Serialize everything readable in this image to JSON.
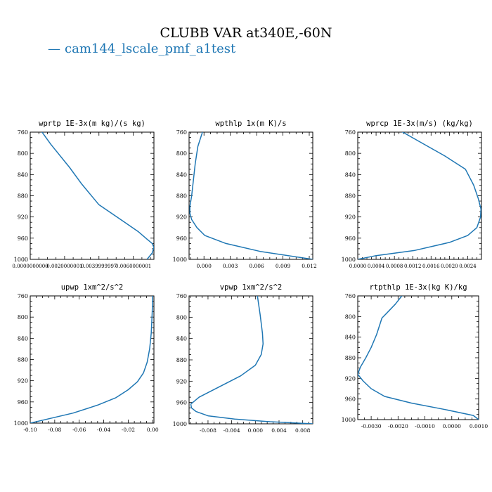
{
  "page": {
    "title": "CLUBB VAR at340E,-60N"
  },
  "legend": {
    "entries": [
      {
        "label": "cam144_lscale_pmf_a1test",
        "color": "#1f77b4"
      }
    ]
  },
  "chart_data": [
    {
      "type": "line",
      "title": "wprtp   1E-3x(m kg)/(s kg)",
      "xlim": [
        0.0,
        0.0072
      ],
      "ylim": [
        760,
        1000
      ],
      "x_ticks": [
        0.0,
        0.0020000001,
        0.0039999997,
        0.0060000001
      ],
      "x_tick_labels": [
        "0.0000000000",
        "0.0020000001",
        "0.0039999997",
        "0.0060000001"
      ],
      "y_ticks": [
        760,
        800,
        840,
        880,
        920,
        960,
        1000
      ],
      "y_tick_labels": [
        "760",
        "800",
        "840",
        "880",
        "920",
        "960",
        "1000"
      ],
      "series": [
        {
          "name": "cam144_lscale_pmf_a1test",
          "x": [
            0.0006,
            0.0012,
            0.0023,
            0.003,
            0.004,
            0.0055,
            0.0063,
            0.0068,
            0.0071,
            0.0072,
            0.0071,
            0.0068
          ],
          "y": [
            756,
            783,
            827,
            858,
            897,
            930,
            948,
            962,
            970,
            978,
            988,
            1000
          ]
        }
      ]
    },
    {
      "type": "line",
      "title": "wpthlp   1x(m K)/s",
      "xlim": [
        -0.0017,
        0.0124
      ],
      "ylim": [
        760,
        1000
      ],
      "x_ticks": [
        0.0,
        0.003,
        0.006,
        0.009,
        0.012
      ],
      "x_tick_labels": [
        "0.000",
        "0.003",
        "0.006",
        "0.009",
        "0.012"
      ],
      "y_ticks": [
        760,
        800,
        840,
        880,
        920,
        960,
        1000
      ],
      "y_tick_labels": [
        "760",
        "800",
        "840",
        "880",
        "920",
        "960",
        "1000"
      ],
      "series": [
        {
          "name": "cam144_lscale_pmf_a1test",
          "x": [
            -0.0001,
            -0.0007,
            -0.001,
            -0.0012,
            -0.0014,
            -0.0016,
            -0.0016,
            -0.0014,
            -0.0008,
            0.0001,
            0.0025,
            0.0064,
            0.0124
          ],
          "y": [
            756,
            787,
            820,
            850,
            880,
            900,
            913,
            925,
            940,
            955,
            970,
            985,
            1000
          ]
        }
      ]
    },
    {
      "type": "line",
      "title": "wprcp   1E-3x(m/s) (kg/kg)",
      "xlim": [
        0.0,
        0.0027
      ],
      "ylim": [
        760,
        1000
      ],
      "x_ticks": [
        0.0,
        0.0004,
        0.0008,
        0.0012,
        0.0016,
        0.002,
        0.0024
      ],
      "x_tick_labels": [
        "0.0000",
        "0.0004",
        "0.0008",
        "0.0012",
        "0.0016",
        "0.0020",
        "0.0024"
      ],
      "y_ticks": [
        760,
        800,
        840,
        880,
        920,
        960,
        1000
      ],
      "y_tick_labels": [
        "760",
        "800",
        "840",
        "880",
        "920",
        "960",
        "1000"
      ],
      "series": [
        {
          "name": "cam144_lscale_pmf_a1test",
          "x": [
            0.0009,
            0.00135,
            0.0019,
            0.00235,
            0.00253,
            0.00263,
            0.00269,
            0.00268,
            0.0026,
            0.0024,
            0.002,
            0.00125,
            0.0004,
            0.0
          ],
          "y": [
            756,
            778,
            805,
            830,
            860,
            885,
            905,
            920,
            940,
            955,
            968,
            983,
            993,
            1000
          ]
        }
      ]
    },
    {
      "type": "line",
      "title": "upwp   1xm^2/s^2",
      "xlim": [
        -0.1,
        0.001
      ],
      "ylim": [
        760,
        1000
      ],
      "x_ticks": [
        -0.1,
        -0.08,
        -0.06,
        -0.04,
        -0.02,
        0.0
      ],
      "x_tick_labels": [
        "-0.10",
        "-0.08",
        "-0.06",
        "-0.04",
        "-0.02",
        "0.00"
      ],
      "y_ticks": [
        760,
        800,
        840,
        880,
        920,
        960,
        1000
      ],
      "y_tick_labels": [
        "760",
        "800",
        "840",
        "880",
        "920",
        "960",
        "1000"
      ],
      "series": [
        {
          "name": "cam144_lscale_pmf_a1test",
          "x": [
            0.0,
            -0.0004,
            -0.0012,
            -0.0025,
            -0.0045,
            -0.0075,
            -0.0125,
            -0.02,
            -0.03,
            -0.045,
            -0.065,
            -0.1
          ],
          "y": [
            756,
            790,
            830,
            860,
            885,
            905,
            922,
            937,
            952,
            966,
            981,
            1000
          ]
        }
      ]
    },
    {
      "type": "line",
      "title": "vpwp   1xm^2/s^2",
      "xlim": [
        -0.0112,
        0.0097
      ],
      "ylim": [
        760,
        1000
      ],
      "x_ticks": [
        -0.008,
        -0.004,
        0.0,
        0.004,
        0.008
      ],
      "x_tick_labels": [
        "-0.008",
        "-0.004",
        "0.000",
        "0.004",
        "0.008"
      ],
      "y_ticks": [
        760,
        800,
        840,
        880,
        920,
        960,
        1000
      ],
      "y_tick_labels": [
        "760",
        "800",
        "840",
        "880",
        "920",
        "960",
        "1000"
      ],
      "series": [
        {
          "name": "cam144_lscale_pmf_a1test",
          "x": [
            0.0003,
            0.0008,
            0.0012,
            0.0013,
            0.001,
            0.0,
            -0.0025,
            -0.006,
            -0.0095,
            -0.0109,
            -0.0108,
            -0.01,
            -0.008,
            -0.0035,
            0.0025,
            0.0097
          ],
          "y": [
            756,
            795,
            830,
            850,
            870,
            890,
            910,
            930,
            950,
            963,
            970,
            977,
            985,
            991,
            996,
            1000
          ]
        }
      ]
    },
    {
      "type": "line",
      "title": "rtpthlp   1E-3x(kg K)/kg",
      "xlim": [
        -0.0035,
        0.001
      ],
      "ylim": [
        760,
        1000
      ],
      "x_ticks": [
        -0.003,
        -0.002,
        -0.001,
        0.0,
        0.001
      ],
      "x_tick_labels": [
        "-0.0030",
        "-0.0020",
        "-0.0010",
        "0.0000",
        "0.0010"
      ],
      "y_ticks": [
        760,
        800,
        840,
        880,
        920,
        960,
        1000
      ],
      "y_tick_labels": [
        "760",
        "800",
        "840",
        "880",
        "920",
        "960",
        "1000"
      ],
      "series": [
        {
          "name": "cam144_lscale_pmf_a1test",
          "x": [
            -0.0018,
            -0.0021,
            -0.00245,
            -0.0026,
            -0.0028,
            -0.003,
            -0.0032,
            -0.0034,
            -0.0035,
            -0.0033,
            -0.003,
            -0.0025,
            -0.0015,
            -0.0003,
            0.0008,
            0.001
          ],
          "y": [
            756,
            776,
            795,
            803,
            835,
            860,
            880,
            898,
            912,
            925,
            940,
            955,
            968,
            980,
            992,
            1000
          ]
        }
      ]
    }
  ]
}
